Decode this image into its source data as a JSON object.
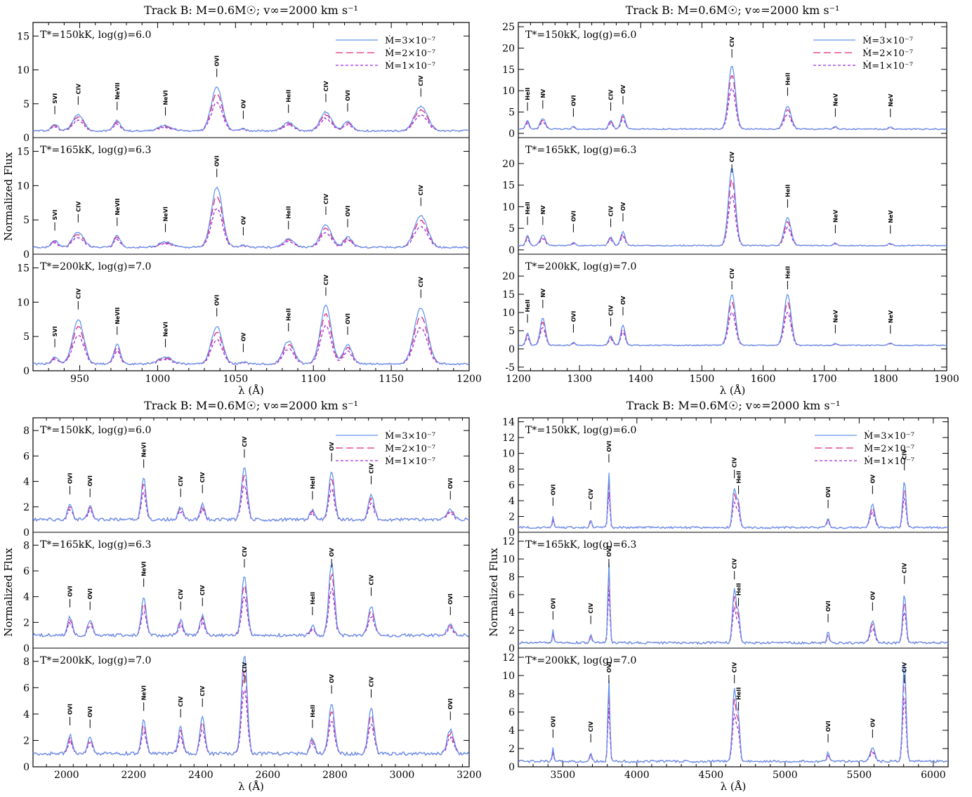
{
  "chart_data": [
    {
      "type": "line",
      "title": "Track B: M=0.6M☉; v∞=2000 km s⁻¹",
      "xlabel": "λ (Å)",
      "ylabel": "Normalized Flux",
      "xlim": [
        920,
        1200
      ],
      "xticks": [
        950,
        1000,
        1050,
        1100,
        1150,
        1200
      ],
      "legend": [
        "Ṁ=3×10⁻⁷",
        "Ṁ=2×10⁻⁷",
        "Ṁ=1×10⁻⁷"
      ],
      "legend_position": "top-right",
      "rows": [
        {
          "label": "T*=150kK, log(g)=6.0",
          "ylim": [
            0,
            17
          ],
          "yticks": [
            0,
            5,
            10,
            15
          ],
          "offset": 0
        },
        {
          "label": "T*=165kK, log(g)=6.3",
          "ylim": [
            0,
            17
          ],
          "yticks": [
            0,
            5,
            10,
            15
          ],
          "offset": 0
        },
        {
          "label": "T*=200kK, log(g)=7.0",
          "ylim": [
            0,
            17
          ],
          "yticks": [
            0,
            5,
            10,
            15
          ],
          "offset": 0
        }
      ],
      "continuum": 1.0,
      "lines": [
        {
          "x": 934,
          "a": [
            1.0,
            1.0,
            1.0
          ],
          "w": 3,
          "label": "SVI"
        },
        {
          "x": 949,
          "a": [
            2.4,
            2.2,
            6.5
          ],
          "w": 5,
          "label": "CIV"
        },
        {
          "x": 974,
          "a": [
            1.6,
            1.7,
            2.8
          ],
          "w": 3,
          "label": "NeVII"
        },
        {
          "x": 1005,
          "a": [
            0.8,
            0.8,
            1.0
          ],
          "w": 6,
          "label": "NeVI"
        },
        {
          "x": 1038,
          "a": [
            6.5,
            8.8,
            5.5
          ],
          "w": 5,
          "label": "OVI"
        },
        {
          "x": 1055,
          "a": [
            0.3,
            0.3,
            0.3
          ],
          "w": 3,
          "label": "OV"
        },
        {
          "x": 1084,
          "a": [
            1.2,
            1.2,
            3.3
          ],
          "w": 5,
          "label": "HeII"
        },
        {
          "x": 1108,
          "a": [
            2.8,
            3.3,
            8.5
          ],
          "w": 5,
          "label": "CIV"
        },
        {
          "x": 1122,
          "a": [
            1.4,
            1.5,
            2.8
          ],
          "w": 4,
          "label": "OVI"
        },
        {
          "x": 1169,
          "a": [
            3.6,
            4.6,
            8.2
          ],
          "w": 6,
          "label": "CIV"
        }
      ]
    },
    {
      "type": "line",
      "title": "Track B: M=0.6M☉; v∞=2000 km s⁻¹",
      "xlabel": "λ (Å)",
      "ylabel": "",
      "xlim": [
        1200,
        1900
      ],
      "xticks": [
        1200,
        1300,
        1400,
        1500,
        1600,
        1700,
        1800,
        1900
      ],
      "legend": [
        "Ṁ=3×10⁻⁷",
        "Ṁ=2×10⁻⁷",
        "Ṁ=1×10⁻⁷"
      ],
      "legend_position": "top-right",
      "rows": [
        {
          "label": "T*=150kK, log(g)=6.0",
          "ylim": [
            -1,
            26
          ],
          "yticks": [
            0,
            5,
            10,
            15,
            20,
            25
          ],
          "offset": 0
        },
        {
          "label": "T*=165kK, log(g)=6.3",
          "ylim": [
            -1,
            26
          ],
          "yticks": [
            0,
            5,
            10,
            15,
            20
          ],
          "offset": 0
        },
        {
          "label": "T*=200kK, log(g)=7.0",
          "ylim": [
            -6,
            26
          ],
          "yticks": [
            -5,
            0,
            5,
            10,
            15,
            20
          ],
          "offset": 0
        }
      ],
      "continuum": 1.0,
      "lines": [
        {
          "x": 1215,
          "a": [
            2.0,
            2.5,
            3.5
          ],
          "w": 4,
          "label": "HeII"
        },
        {
          "x": 1240,
          "a": [
            2.5,
            2.5,
            7.5
          ],
          "w": 6,
          "label": "NV"
        },
        {
          "x": 1290,
          "a": [
            0.6,
            0.8,
            0.8
          ],
          "w": 4,
          "label": "OVI"
        },
        {
          "x": 1351,
          "a": [
            2.0,
            2.0,
            2.5
          ],
          "w": 5,
          "label": "CIV"
        },
        {
          "x": 1371,
          "a": [
            3.5,
            3.3,
            5.5
          ],
          "w": 5,
          "label": "OV"
        },
        {
          "x": 1549,
          "a": [
            15.0,
            18.0,
            14.0
          ],
          "w": 8,
          "label": "CIV"
        },
        {
          "x": 1640,
          "a": [
            5.5,
            6.5,
            14.0
          ],
          "w": 8,
          "label": "HeII"
        },
        {
          "x": 1718,
          "a": [
            0.6,
            0.6,
            0.6
          ],
          "w": 4,
          "label": "NeV"
        },
        {
          "x": 1808,
          "a": [
            0.5,
            0.5,
            0.5
          ],
          "w": 5,
          "label": "NeV"
        }
      ]
    },
    {
      "type": "line",
      "title": "Track B: M=0.6M☉; v∞=2000 km s⁻¹",
      "xlabel": "λ (Å)",
      "ylabel": "Normalized Flux",
      "xlim": [
        1900,
        3200
      ],
      "xticks": [
        2000,
        2200,
        2400,
        2600,
        2800,
        3000,
        3200
      ],
      "legend": [
        "Ṁ=3×10⁻⁷",
        "Ṁ=2×10⁻⁷",
        "Ṁ=1×10⁻⁷"
      ],
      "legend_position": "top-right",
      "rows": [
        {
          "label": "T*=150kK, log(g)=6.0",
          "ylim": [
            0,
            9
          ],
          "yticks": [
            0,
            2,
            4,
            6,
            8
          ],
          "offset": 0
        },
        {
          "label": "T*=165kK, log(g)=6.3",
          "ylim": [
            0,
            9
          ],
          "yticks": [
            0,
            2,
            4,
            6,
            8
          ],
          "offset": 0
        },
        {
          "label": "T*=200kK, log(g)=7.0",
          "ylim": [
            0,
            9
          ],
          "yticks": [
            0,
            2,
            4,
            6,
            8
          ],
          "offset": 0
        }
      ],
      "continuum": 1.0,
      "lines": [
        {
          "x": 2010,
          "a": [
            1.2,
            1.4,
            1.4
          ],
          "w": 10,
          "label": "OVI"
        },
        {
          "x": 2070,
          "a": [
            1.0,
            1.2,
            1.2
          ],
          "w": 10,
          "label": "OVI"
        },
        {
          "x": 2230,
          "a": [
            3.3,
            3.0,
            2.5
          ],
          "w": 10,
          "label": "NeVI"
        },
        {
          "x": 2340,
          "a": [
            1.0,
            1.2,
            2.0
          ],
          "w": 10,
          "label": "CIV"
        },
        {
          "x": 2405,
          "a": [
            1.3,
            1.5,
            2.8
          ],
          "w": 10,
          "label": "CIV"
        },
        {
          "x": 2530,
          "a": [
            4.1,
            4.5,
            7.5
          ],
          "w": 12,
          "label": "CIV"
        },
        {
          "x": 2733,
          "a": [
            0.8,
            0.8,
            1.2
          ],
          "w": 10,
          "label": "HeII"
        },
        {
          "x": 2790,
          "a": [
            3.8,
            5.6,
            3.8
          ],
          "w": 12,
          "label": "OV"
        },
        {
          "x": 2908,
          "a": [
            2.0,
            2.3,
            3.5
          ],
          "w": 12,
          "label": "CIV"
        },
        {
          "x": 3144,
          "a": [
            0.8,
            0.8,
            1.8
          ],
          "w": 14,
          "label": "OVI"
        }
      ]
    },
    {
      "type": "line",
      "title": "Track B: M=0.6M☉; v∞=2000 km s⁻¹",
      "xlabel": "λ (Å)",
      "ylabel": "Normalized Flux",
      "xlim": [
        3200,
        6100
      ],
      "xticks": [
        3500,
        4000,
        4500,
        5000,
        5500,
        6000
      ],
      "legend": [
        "Ṁ=3×10⁻⁷",
        "Ṁ=2×10⁻⁷",
        "Ṁ=1×10⁻⁷"
      ],
      "legend_position": "top-right",
      "rows": [
        {
          "label": "T*=150kK, log(g)=6.0",
          "ylim": [
            0,
            14.5
          ],
          "yticks": [
            0,
            2,
            4,
            6,
            8,
            10,
            12,
            14
          ],
          "offset": 0
        },
        {
          "label": "T*=165kK, log(g)=6.3",
          "ylim": [
            0,
            13
          ],
          "yticks": [
            0,
            2,
            4,
            6,
            8,
            10,
            12
          ],
          "offset": 0
        },
        {
          "label": "T*=200kK, log(g)=7.0",
          "ylim": [
            0,
            13
          ],
          "yticks": [
            0,
            2,
            4,
            6,
            8,
            10,
            12
          ],
          "offset": 0
        }
      ],
      "continuum": 0.6,
      "lines": [
        {
          "x": 3434,
          "a": [
            1.5,
            1.5,
            1.5
          ],
          "w": 8,
          "label": "OVI"
        },
        {
          "x": 3689,
          "a": [
            1.0,
            1.0,
            1.0
          ],
          "w": 10,
          "label": "CIV"
        },
        {
          "x": 3811,
          "a": [
            7.0,
            9.0,
            9.0
          ],
          "w": 10,
          "label": "OVI"
        },
        {
          "x": 4658,
          "a": [
            5.0,
            6.0,
            8.0
          ],
          "w": 18,
          "label": "CIV"
        },
        {
          "x": 4686,
          "a": [
            3.0,
            3.0,
            4.5
          ],
          "w": 14,
          "label": "HeII"
        },
        {
          "x": 5290,
          "a": [
            1.2,
            1.2,
            1.0
          ],
          "w": 12,
          "label": "OVI"
        },
        {
          "x": 5590,
          "a": [
            3.0,
            2.5,
            1.5
          ],
          "w": 22,
          "label": "OV"
        },
        {
          "x": 5805,
          "a": [
            6.0,
            5.5,
            11.0
          ],
          "w": 16,
          "label": "CIV"
        }
      ]
    }
  ]
}
